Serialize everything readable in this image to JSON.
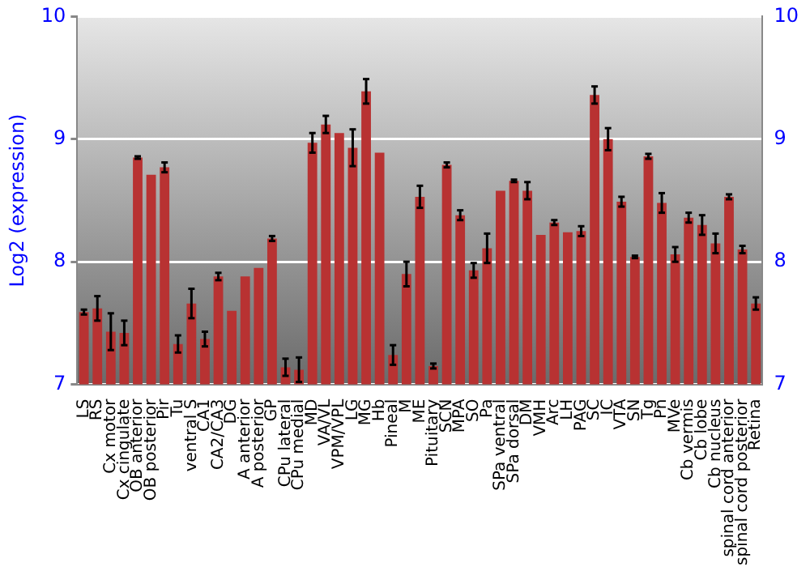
{
  "chart_data": {
    "type": "bar",
    "ylabel": "Log2 (expression)",
    "categories": [
      "LS",
      "RS",
      "Cx motor",
      "Cx cingulate",
      "OB anterior",
      "OB posterior",
      "Pir",
      "Tu",
      "ventral S",
      "CA1",
      "CA2/CA3",
      "DG",
      "A anterior",
      "A posterior",
      "GP",
      "CPu lateral",
      "CPu medial",
      "MD",
      "VA/VL",
      "VPM/VPL",
      "LG",
      "MG",
      "Hb",
      "Pineal",
      "M",
      "ME",
      "Pituitary",
      "SCN",
      "MPA",
      "SO",
      "Pa",
      "SPa ventral",
      "SPa dorsal",
      "DM",
      "VMH",
      "Arc",
      "LH",
      "PAG",
      "SC",
      "IC",
      "VTA",
      "SN",
      "Tg",
      "Pn",
      "MVe",
      "Cb vermis",
      "Cb lobe",
      "Cb nucleus",
      "spinal cord anterior",
      "spinal cord posterior",
      "Retina"
    ],
    "series": [
      {
        "color": "#b83232",
        "values": [
          7.59,
          7.62,
          7.43,
          7.42,
          8.85,
          8.71,
          8.77,
          7.33,
          7.66,
          7.37,
          7.88,
          7.6,
          7.88,
          7.95,
          8.19,
          7.14,
          7.12,
          8.97,
          9.12,
          9.05,
          8.93,
          9.39,
          8.89,
          7.24,
          7.9,
          8.53,
          7.15,
          8.79,
          8.38,
          7.93,
          8.11,
          8.58,
          8.66,
          8.58,
          8.22,
          8.32,
          8.24,
          8.25,
          9.36,
          9.0,
          8.49,
          8.04,
          8.86,
          8.48,
          8.06,
          8.36,
          8.3,
          8.15,
          8.53,
          8.1,
          7.66
        ],
        "errors": [
          0.02,
          0.1,
          0.15,
          0.1,
          0.01,
          null,
          0.04,
          0.07,
          0.12,
          0.06,
          0.03,
          null,
          null,
          null,
          0.02,
          0.07,
          0.1,
          0.08,
          0.07,
          null,
          0.15,
          0.1,
          null,
          0.08,
          0.1,
          0.09,
          0.02,
          0.02,
          0.04,
          0.06,
          0.12,
          null,
          0.01,
          0.07,
          null,
          0.02,
          null,
          0.04,
          0.07,
          0.09,
          0.04,
          0.01,
          0.02,
          0.08,
          0.06,
          0.04,
          0.08,
          0.08,
          0.02,
          0.03,
          0.05
        ]
      }
    ],
    "ylim": [
      7,
      10
    ],
    "yticks": [
      7,
      8,
      9,
      10
    ],
    "y2lim": [
      7,
      10
    ],
    "y2ticks": [
      7,
      8,
      9,
      10
    ],
    "grid": "y",
    "legend": false
  }
}
